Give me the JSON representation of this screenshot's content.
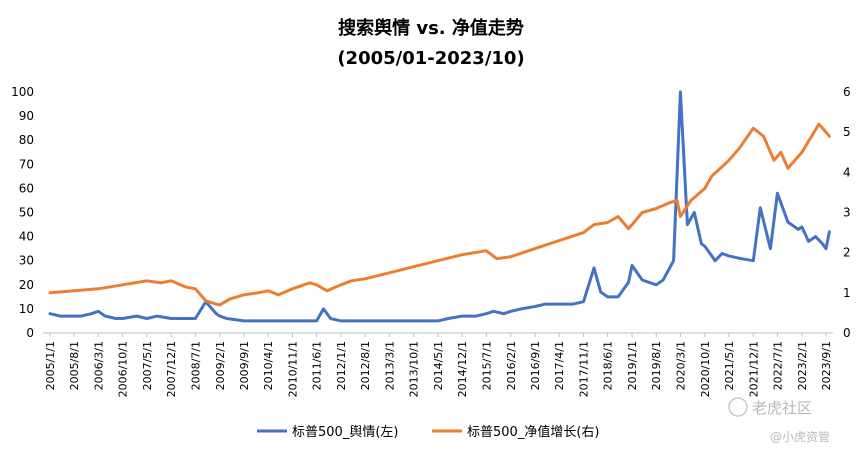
{
  "chart_data": {
    "type": "line",
    "title": "搜索舆情 vs. 净值走势",
    "subtitle": "(2005/01-2023/10)",
    "x_tick_labels": [
      "2005/1/1",
      "2005/8/1",
      "2006/3/1",
      "2006/10/1",
      "2007/5/1",
      "2007/12/1",
      "2008/7/1",
      "2009/2/1",
      "2009/9/1",
      "2010/4/1",
      "2010/11/1",
      "2011/6/1",
      "2012/1/1",
      "2012/8/1",
      "2013/3/1",
      "2013/10/1",
      "2014/5/1",
      "2014/12/1",
      "2015/7/1",
      "2016/2/1",
      "2016/9/1",
      "2017/4/1",
      "2017/11/1",
      "2018/6/1",
      "2019/1/1",
      "2019/8/1",
      "2020/3/1",
      "2020/10/1",
      "2021/5/1",
      "2021/12/1",
      "2022/7/1",
      "2023/2/1",
      "2023/9/1"
    ],
    "y_left": {
      "min": 0,
      "max": 100,
      "step": 10
    },
    "y_right": {
      "min": 0,
      "max": 6,
      "step": 1
    },
    "grid": false,
    "legend_position": "bottom",
    "series": [
      {
        "name": "标普500_舆情(左)",
        "axis": "left",
        "color": "#4472C4",
        "points": [
          [
            "2005/1/1",
            8
          ],
          [
            "2005/4/1",
            7
          ],
          [
            "2005/7/1",
            7
          ],
          [
            "2005/10/1",
            7
          ],
          [
            "2006/1/1",
            8
          ],
          [
            "2006/3/1",
            9
          ],
          [
            "2006/5/1",
            7
          ],
          [
            "2006/8/1",
            6
          ],
          [
            "2006/10/1",
            6
          ],
          [
            "2007/2/1",
            7
          ],
          [
            "2007/5/1",
            6
          ],
          [
            "2007/8/1",
            7
          ],
          [
            "2007/12/1",
            6
          ],
          [
            "2008/4/1",
            6
          ],
          [
            "2008/7/1",
            6
          ],
          [
            "2008/10/1",
            13
          ],
          [
            "2009/1/1",
            8
          ],
          [
            "2009/2/1",
            7
          ],
          [
            "2009/4/1",
            6
          ],
          [
            "2009/9/1",
            5
          ],
          [
            "2010/4/1",
            5
          ],
          [
            "2010/8/1",
            5
          ],
          [
            "2010/11/1",
            5
          ],
          [
            "2011/3/1",
            5
          ],
          [
            "2011/6/1",
            5
          ],
          [
            "2011/8/1",
            10
          ],
          [
            "2011/10/1",
            6
          ],
          [
            "2012/1/1",
            5
          ],
          [
            "2012/8/1",
            5
          ],
          [
            "2013/3/1",
            5
          ],
          [
            "2013/10/1",
            5
          ],
          [
            "2014/2/1",
            5
          ],
          [
            "2014/5/1",
            5
          ],
          [
            "2014/8/1",
            6
          ],
          [
            "2014/12/1",
            7
          ],
          [
            "2015/4/1",
            7
          ],
          [
            "2015/7/1",
            8
          ],
          [
            "2015/9/1",
            9
          ],
          [
            "2015/12/1",
            8
          ],
          [
            "2016/2/1",
            9
          ],
          [
            "2016/5/1",
            10
          ],
          [
            "2016/9/1",
            11
          ],
          [
            "2016/12/1",
            12
          ],
          [
            "2017/4/1",
            12
          ],
          [
            "2017/8/1",
            12
          ],
          [
            "2017/11/1",
            13
          ],
          [
            "2018/2/1",
            27
          ],
          [
            "2018/4/1",
            17
          ],
          [
            "2018/6/1",
            15
          ],
          [
            "2018/9/1",
            15
          ],
          [
            "2018/12/1",
            21
          ],
          [
            "2019/1/1",
            28
          ],
          [
            "2019/4/1",
            22
          ],
          [
            "2019/6/1",
            21
          ],
          [
            "2019/8/1",
            20
          ],
          [
            "2019/10/1",
            22
          ],
          [
            "2020/1/1",
            30
          ],
          [
            "2020/3/1",
            100
          ],
          [
            "2020/5/1",
            45
          ],
          [
            "2020/7/1",
            50
          ],
          [
            "2020/9/1",
            37
          ],
          [
            "2020/10/1",
            36
          ],
          [
            "2021/1/1",
            30
          ],
          [
            "2021/3/1",
            33
          ],
          [
            "2021/5/1",
            32
          ],
          [
            "2021/8/1",
            31
          ],
          [
            "2021/12/1",
            30
          ],
          [
            "2022/2/1",
            52
          ],
          [
            "2022/5/1",
            35
          ],
          [
            "2022/7/1",
            58
          ],
          [
            "2022/10/1",
            46
          ],
          [
            "2023/1/1",
            43
          ],
          [
            "2023/2/1",
            44
          ],
          [
            "2023/4/1",
            38
          ],
          [
            "2023/6/1",
            40
          ],
          [
            "2023/8/1",
            37
          ],
          [
            "2023/9/1",
            35
          ],
          [
            "2023/10/1",
            42
          ]
        ]
      },
      {
        "name": "标普500_净值增长(右)",
        "axis": "right",
        "color": "#ED7D31",
        "points": [
          [
            "2005/1/1",
            1.0
          ],
          [
            "2005/8/1",
            1.05
          ],
          [
            "2006/3/1",
            1.1
          ],
          [
            "2006/10/1",
            1.2
          ],
          [
            "2007/5/1",
            1.3
          ],
          [
            "2007/9/1",
            1.25
          ],
          [
            "2007/12/1",
            1.3
          ],
          [
            "2008/4/1",
            1.15
          ],
          [
            "2008/7/1",
            1.1
          ],
          [
            "2008/10/1",
            0.8
          ],
          [
            "2009/1/1",
            0.72
          ],
          [
            "2009/2/1",
            0.7
          ],
          [
            "2009/5/1",
            0.85
          ],
          [
            "2009/9/1",
            0.95
          ],
          [
            "2010/1/1",
            1.0
          ],
          [
            "2010/4/1",
            1.05
          ],
          [
            "2010/7/1",
            0.95
          ],
          [
            "2010/11/1",
            1.1
          ],
          [
            "2011/4/1",
            1.25
          ],
          [
            "2011/6/1",
            1.2
          ],
          [
            "2011/9/1",
            1.05
          ],
          [
            "2012/1/1",
            1.2
          ],
          [
            "2012/4/1",
            1.3
          ],
          [
            "2012/8/1",
            1.35
          ],
          [
            "2013/3/1",
            1.5
          ],
          [
            "2013/10/1",
            1.65
          ],
          [
            "2014/5/1",
            1.8
          ],
          [
            "2014/12/1",
            1.95
          ],
          [
            "2015/7/1",
            2.05
          ],
          [
            "2015/10/1",
            1.85
          ],
          [
            "2016/2/1",
            1.9
          ],
          [
            "2016/9/1",
            2.1
          ],
          [
            "2017/4/1",
            2.3
          ],
          [
            "2017/11/1",
            2.5
          ],
          [
            "2018/2/1",
            2.7
          ],
          [
            "2018/6/1",
            2.75
          ],
          [
            "2018/9/1",
            2.9
          ],
          [
            "2018/12/1",
            2.6
          ],
          [
            "2019/1/1",
            2.7
          ],
          [
            "2019/4/1",
            3.0
          ],
          [
            "2019/8/1",
            3.1
          ],
          [
            "2019/12/1",
            3.25
          ],
          [
            "2020/2/1",
            3.3
          ],
          [
            "2020/3/1",
            2.9
          ],
          [
            "2020/6/1",
            3.3
          ],
          [
            "2020/10/1",
            3.6
          ],
          [
            "2020/12/1",
            3.9
          ],
          [
            "2021/5/1",
            4.3
          ],
          [
            "2021/8/1",
            4.6
          ],
          [
            "2021/12/1",
            5.1
          ],
          [
            "2022/3/1",
            4.9
          ],
          [
            "2022/6/1",
            4.3
          ],
          [
            "2022/8/1",
            4.5
          ],
          [
            "2022/10/1",
            4.1
          ],
          [
            "2023/2/1",
            4.5
          ],
          [
            "2023/7/1",
            5.2
          ],
          [
            "2023/9/1",
            5.0
          ],
          [
            "2023/10/1",
            4.9
          ]
        ]
      }
    ]
  },
  "watermark": {
    "primary": "老虎社区",
    "secondary": "@小虎资管"
  }
}
